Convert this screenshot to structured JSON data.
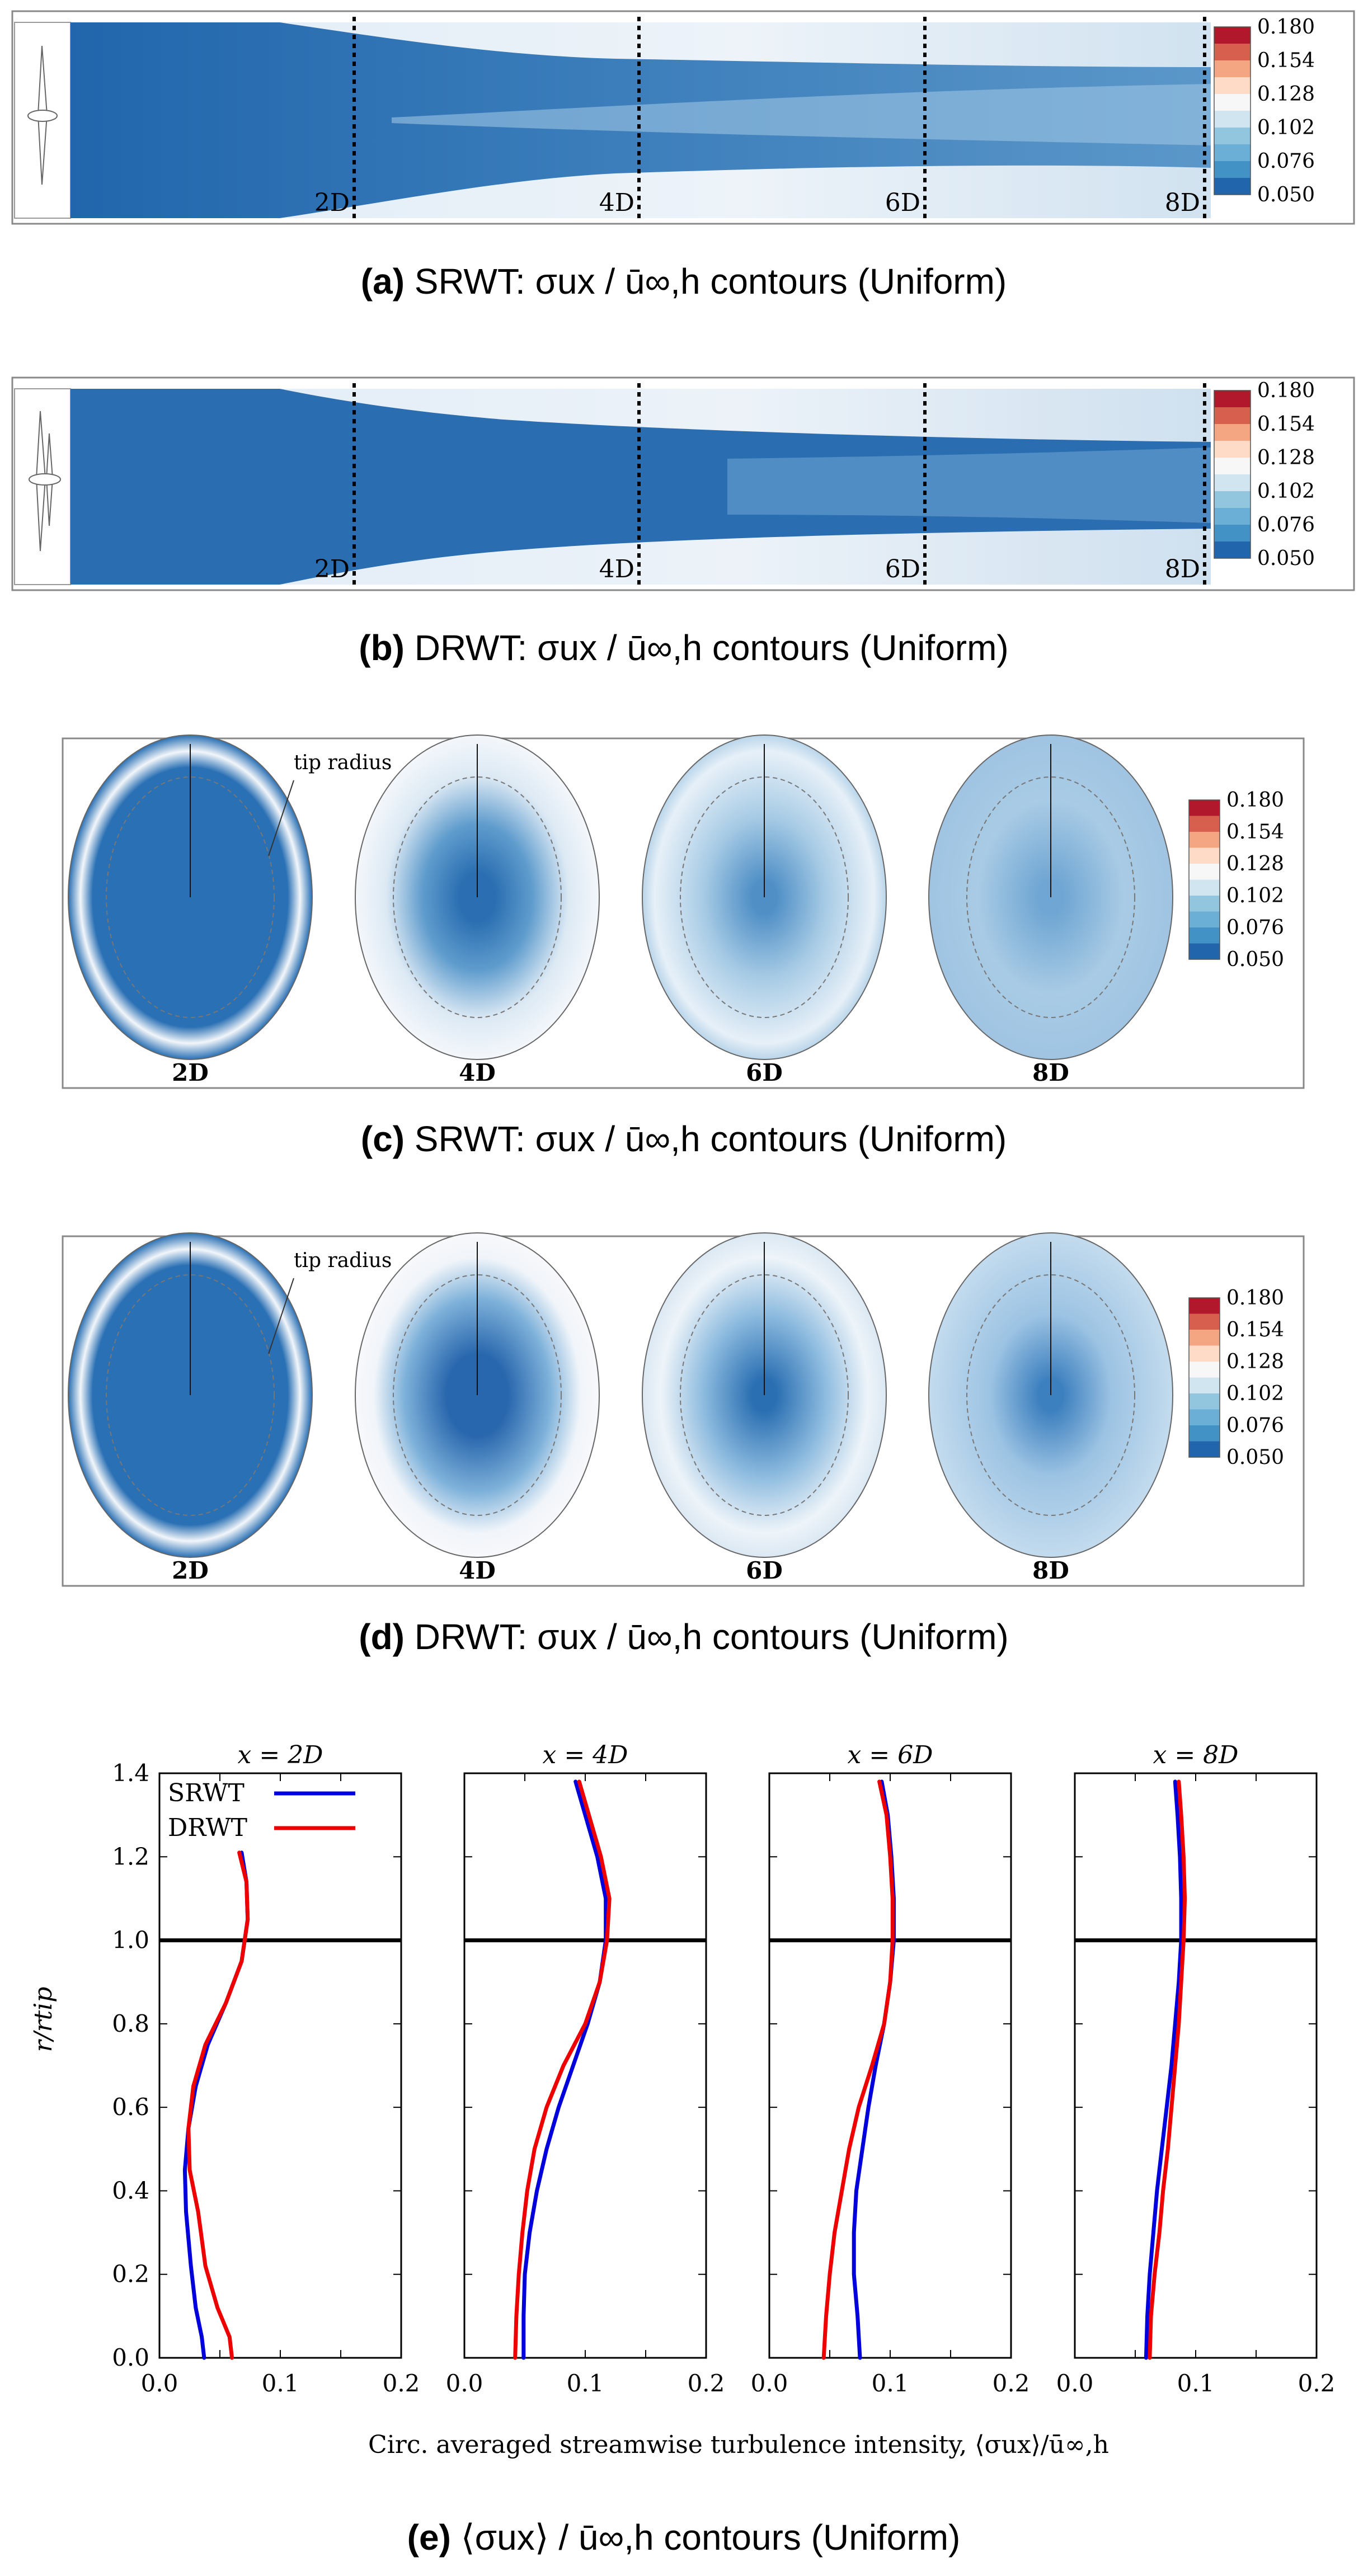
{
  "colorbar": {
    "ticks": [
      "0.180",
      "0.154",
      "0.128",
      "0.102",
      "0.076",
      "0.050"
    ],
    "colors": [
      "#b2182b",
      "#d6604d",
      "#f4a582",
      "#fddbc7",
      "#f7f7f7",
      "#d1e5f0",
      "#92c5de",
      "#6baed6",
      "#4292c6",
      "#2166ac"
    ]
  },
  "panel_a": {
    "caption": {
      "tag": "(a)",
      "text": "SRWT: σux / ū∞,h contours (Uniform)"
    },
    "stations": [
      "2D",
      "4D",
      "6D",
      "8D"
    ]
  },
  "panel_b": {
    "caption": {
      "tag": "(b)",
      "text": "DRWT: σux / ū∞,h contours (Uniform)"
    },
    "stations": [
      "2D",
      "4D",
      "6D",
      "8D"
    ]
  },
  "panel_c": {
    "caption": {
      "tag": "(c)",
      "text": "SRWT: σux / ū∞,h contours (Uniform)"
    },
    "annotation": "tip radius",
    "stations": [
      "2D",
      "4D",
      "6D",
      "8D"
    ]
  },
  "panel_d": {
    "caption": {
      "tag": "(d)",
      "text": "DRWT: σux / ū∞,h contours (Uniform)"
    },
    "annotation": "tip radius",
    "stations": [
      "2D",
      "4D",
      "6D",
      "8D"
    ]
  },
  "panel_e": {
    "caption": {
      "tag": "(e)",
      "text": "⟨σux⟩ / ū∞,h contours (Uniform)"
    },
    "xlabel": "Circ. averaged streamwise turbulence intensity, ⟨σux⟩/ū∞,h",
    "ylabel": "r/rtip"
  },
  "chart_data": [
    {
      "type": "line",
      "title": "x = 2D",
      "xlim": [
        0,
        0.2
      ],
      "ylim": [
        0,
        1.4
      ],
      "xticks": [
        "0.0",
        "0.1",
        "0.2"
      ],
      "yticks": [
        "0.0",
        "0.2",
        "0.4",
        "0.6",
        "0.8",
        "1.0",
        "1.2",
        "1.4"
      ],
      "reference_line_y": 1.0,
      "legend_placement": "top-right",
      "series": [
        {
          "name": "SRWT",
          "color": "#0000dd",
          "x": [
            0.037,
            0.035,
            0.03,
            0.026,
            0.022,
            0.021,
            0.024,
            0.03,
            0.04,
            0.055,
            0.068,
            0.073,
            0.072,
            0.068
          ],
          "y": [
            0.0,
            0.05,
            0.12,
            0.22,
            0.35,
            0.45,
            0.55,
            0.65,
            0.75,
            0.85,
            0.95,
            1.05,
            1.14,
            1.21
          ]
        },
        {
          "name": "DRWT",
          "color": "#ee0000",
          "x": [
            0.06,
            0.058,
            0.048,
            0.038,
            0.032,
            0.025,
            0.024,
            0.028,
            0.038,
            0.055,
            0.068,
            0.073,
            0.072,
            0.066
          ],
          "y": [
            0.0,
            0.05,
            0.12,
            0.22,
            0.35,
            0.45,
            0.55,
            0.65,
            0.75,
            0.85,
            0.95,
            1.05,
            1.14,
            1.21
          ]
        }
      ]
    },
    {
      "type": "line",
      "title": "x = 4D",
      "xlim": [
        0,
        0.2
      ],
      "ylim": [
        0,
        1.4
      ],
      "xticks": [
        "0.0",
        "0.1",
        "0.2"
      ],
      "reference_line_y": 1.0,
      "series": [
        {
          "name": "SRWT",
          "color": "#0000dd",
          "x": [
            0.049,
            0.049,
            0.05,
            0.054,
            0.06,
            0.068,
            0.078,
            0.09,
            0.102,
            0.112,
            0.117,
            0.117,
            0.11,
            0.1,
            0.092
          ],
          "y": [
            0.0,
            0.1,
            0.2,
            0.3,
            0.4,
            0.5,
            0.6,
            0.7,
            0.8,
            0.9,
            1.0,
            1.1,
            1.2,
            1.3,
            1.38
          ]
        },
        {
          "name": "DRWT",
          "color": "#ee0000",
          "x": [
            0.042,
            0.043,
            0.045,
            0.048,
            0.052,
            0.058,
            0.068,
            0.082,
            0.1,
            0.112,
            0.118,
            0.12,
            0.113,
            0.103,
            0.095
          ],
          "y": [
            0.0,
            0.1,
            0.2,
            0.3,
            0.4,
            0.5,
            0.6,
            0.7,
            0.8,
            0.9,
            1.0,
            1.1,
            1.2,
            1.3,
            1.38
          ]
        }
      ]
    },
    {
      "type": "line",
      "title": "x = 6D",
      "xlim": [
        0,
        0.2
      ],
      "ylim": [
        0,
        1.4
      ],
      "xticks": [
        "0.0",
        "0.1",
        "0.2"
      ],
      "reference_line_y": 1.0,
      "series": [
        {
          "name": "SRWT",
          "color": "#0000dd",
          "x": [
            0.075,
            0.073,
            0.07,
            0.07,
            0.072,
            0.077,
            0.082,
            0.088,
            0.095,
            0.1,
            0.103,
            0.103,
            0.101,
            0.098,
            0.093
          ],
          "y": [
            0.0,
            0.1,
            0.2,
            0.3,
            0.4,
            0.5,
            0.6,
            0.7,
            0.8,
            0.9,
            1.0,
            1.1,
            1.2,
            1.3,
            1.38
          ]
        },
        {
          "name": "DRWT",
          "color": "#ee0000",
          "x": [
            0.045,
            0.047,
            0.05,
            0.054,
            0.06,
            0.066,
            0.074,
            0.085,
            0.095,
            0.1,
            0.102,
            0.102,
            0.1,
            0.097,
            0.091
          ],
          "y": [
            0.0,
            0.1,
            0.2,
            0.3,
            0.4,
            0.5,
            0.6,
            0.7,
            0.8,
            0.9,
            1.0,
            1.1,
            1.2,
            1.3,
            1.38
          ]
        }
      ]
    },
    {
      "type": "line",
      "title": "x = 8D",
      "xlim": [
        0,
        0.2
      ],
      "ylim": [
        0,
        1.4
      ],
      "xticks": [
        "0.0",
        "0.1",
        "0.2"
      ],
      "reference_line_y": 1.0,
      "series": [
        {
          "name": "SRWT",
          "color": "#0000dd",
          "x": [
            0.059,
            0.06,
            0.062,
            0.065,
            0.068,
            0.072,
            0.076,
            0.08,
            0.083,
            0.086,
            0.088,
            0.088,
            0.087,
            0.085,
            0.083
          ],
          "y": [
            0.0,
            0.1,
            0.2,
            0.3,
            0.4,
            0.5,
            0.6,
            0.7,
            0.8,
            0.9,
            1.0,
            1.1,
            1.2,
            1.3,
            1.38
          ]
        },
        {
          "name": "DRWT",
          "color": "#ee0000",
          "x": [
            0.062,
            0.063,
            0.066,
            0.07,
            0.073,
            0.077,
            0.08,
            0.083,
            0.086,
            0.088,
            0.09,
            0.091,
            0.09,
            0.088,
            0.086
          ],
          "y": [
            0.0,
            0.1,
            0.2,
            0.3,
            0.4,
            0.5,
            0.6,
            0.7,
            0.8,
            0.9,
            1.0,
            1.1,
            1.2,
            1.3,
            1.38
          ]
        }
      ]
    }
  ]
}
